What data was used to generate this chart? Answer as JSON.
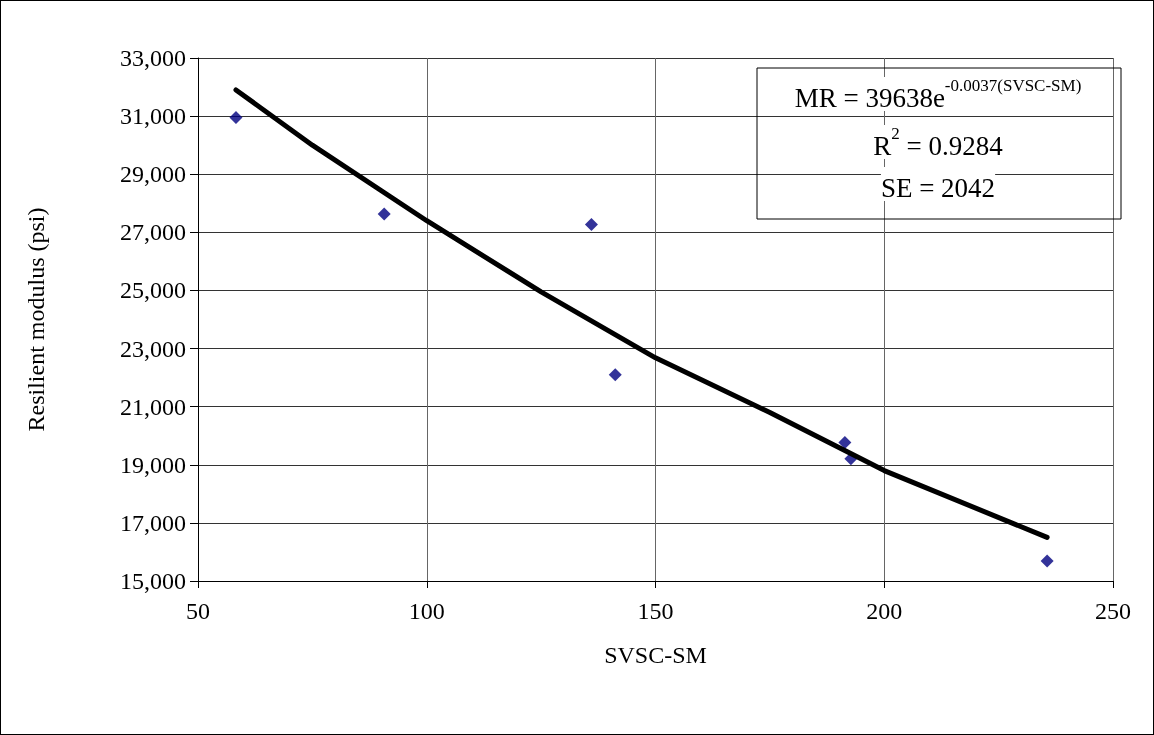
{
  "chart_data": {
    "type": "scatter",
    "xlabel": "SVSC-SM",
    "ylabel": "Resilient modulus (psi)",
    "xlim": [
      50,
      250
    ],
    "xticks": [
      50,
      100,
      150,
      200,
      250
    ],
    "ylim": [
      15000,
      33000
    ],
    "yticks": [
      {
        "value": 15000,
        "label": "15,000"
      },
      {
        "value": 17000,
        "label": "17,000"
      },
      {
        "value": 19000,
        "label": "19,000"
      },
      {
        "value": 21000,
        "label": "21,000"
      },
      {
        "value": 23000,
        "label": "23,000"
      },
      {
        "value": 25000,
        "label": "25,000"
      },
      {
        "value": 27000,
        "label": "27,000"
      },
      {
        "value": 29000,
        "label": "29,000"
      },
      {
        "value": 31000,
        "label": "31,000"
      },
      {
        "value": 33000,
        "label": "33,000"
      }
    ],
    "grid": true,
    "marker": "diamond",
    "series": [
      {
        "color": "#000080",
        "x": [
          58.3,
          90.7,
          136.0,
          141.2,
          191.4,
          192.7,
          235.6
        ],
        "values": [
          30950,
          27630,
          27270,
          22100,
          19770,
          19210,
          15690
        ]
      },
      {
        "type": "line",
        "color": "#000000",
        "marker": "none",
        "x": [
          58.3,
          75,
          100,
          125,
          150,
          175,
          200,
          235.6
        ],
        "values": [
          31900,
          30000,
          27400,
          24950,
          22680,
          20800,
          18800,
          16500
        ]
      }
    ],
    "annotations": [
      "MR = 39638e$^{-0.0037(SVSC-SM)}$",
      "R$^{2}$ = 0.9284",
      "SE = 2042"
    ]
  }
}
